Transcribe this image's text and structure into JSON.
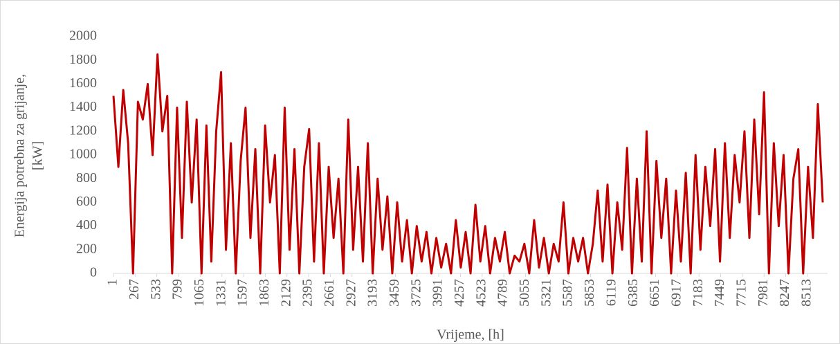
{
  "chart_data": {
    "type": "line",
    "y_label": [
      "Energija potrebna za grijanje,",
      "[kW]"
    ],
    "x_label": "Vrijeme, [h]",
    "xlim": [
      1,
      8760
    ],
    "xticks": [
      1,
      267,
      533,
      799,
      1065,
      1331,
      1597,
      1863,
      2129,
      2395,
      2661,
      2927,
      3193,
      3459,
      3725,
      3991,
      4257,
      4523,
      4789,
      5055,
      5321,
      5587,
      5853,
      6119,
      6385,
      6651,
      6917,
      7183,
      7449,
      7715,
      7981,
      8247,
      8513
    ],
    "ylim": [
      0,
      2000
    ],
    "yticks": [
      0,
      200,
      400,
      600,
      800,
      1000,
      1200,
      1400,
      1600,
      1800,
      2000
    ],
    "grid": false,
    "series": [
      {
        "color": "#c00000",
        "x": [
          1,
          61,
          121,
          181,
          241,
          301,
          361,
          421,
          481,
          541,
          601,
          661,
          721,
          781,
          841,
          901,
          961,
          1021,
          1081,
          1141,
          1201,
          1261,
          1321,
          1381,
          1441,
          1501,
          1561,
          1621,
          1681,
          1741,
          1801,
          1861,
          1921,
          1981,
          2041,
          2101,
          2161,
          2221,
          2281,
          2341,
          2401,
          2461,
          2521,
          2581,
          2641,
          2701,
          2761,
          2821,
          2881,
          2941,
          3001,
          3061,
          3121,
          3181,
          3241,
          3301,
          3361,
          3421,
          3481,
          3541,
          3601,
          3661,
          3721,
          3781,
          3841,
          3901,
          3961,
          4021,
          4081,
          4141,
          4201,
          4261,
          4321,
          4381,
          4441,
          4501,
          4561,
          4621,
          4681,
          4741,
          4801,
          4861,
          4921,
          4981,
          5041,
          5101,
          5161,
          5221,
          5281,
          5341,
          5401,
          5461,
          5521,
          5581,
          5641,
          5701,
          5761,
          5821,
          5881,
          5941,
          6001,
          6061,
          6121,
          6181,
          6241,
          6301,
          6361,
          6421,
          6481,
          6541,
          6601,
          6661,
          6721,
          6781,
          6841,
          6901,
          6961,
          7021,
          7081,
          7141,
          7201,
          7261,
          7321,
          7381,
          7441,
          7501,
          7561,
          7621,
          7681,
          7741,
          7801,
          7861,
          7921,
          7981,
          8041,
          8101,
          8161,
          8221,
          8281,
          8341,
          8401,
          8461,
          8521,
          8581,
          8641,
          8701
        ],
        "values": [
          1500,
          900,
          1550,
          1100,
          0,
          1450,
          1300,
          1600,
          1000,
          1850,
          1200,
          1500,
          0,
          1400,
          300,
          1450,
          600,
          1300,
          0,
          1250,
          100,
          1200,
          1700,
          200,
          1100,
          0,
          950,
          1400,
          300,
          1050,
          0,
          1250,
          600,
          1000,
          0,
          1400,
          200,
          1050,
          0,
          900,
          1220,
          100,
          1100,
          0,
          900,
          300,
          800,
          0,
          1300,
          200,
          900,
          100,
          1100,
          0,
          800,
          200,
          650,
          0,
          600,
          100,
          450,
          0,
          400,
          100,
          350,
          0,
          300,
          50,
          250,
          0,
          450,
          50,
          350,
          0,
          580,
          100,
          400,
          0,
          300,
          100,
          350,
          0,
          150,
          100,
          250,
          0,
          450,
          50,
          300,
          0,
          250,
          100,
          600,
          0,
          300,
          100,
          300,
          0,
          250,
          700,
          100,
          750,
          0,
          600,
          200,
          1060,
          0,
          800,
          100,
          1200,
          0,
          950,
          300,
          800,
          0,
          700,
          100,
          850,
          0,
          1000,
          200,
          900,
          400,
          1050,
          100,
          1100,
          300,
          1000,
          600,
          1200,
          300,
          1300,
          500,
          1530,
          0,
          1100,
          400,
          1000,
          0,
          800,
          1050,
          0,
          900,
          300,
          1430,
          600
        ]
      }
    ]
  }
}
